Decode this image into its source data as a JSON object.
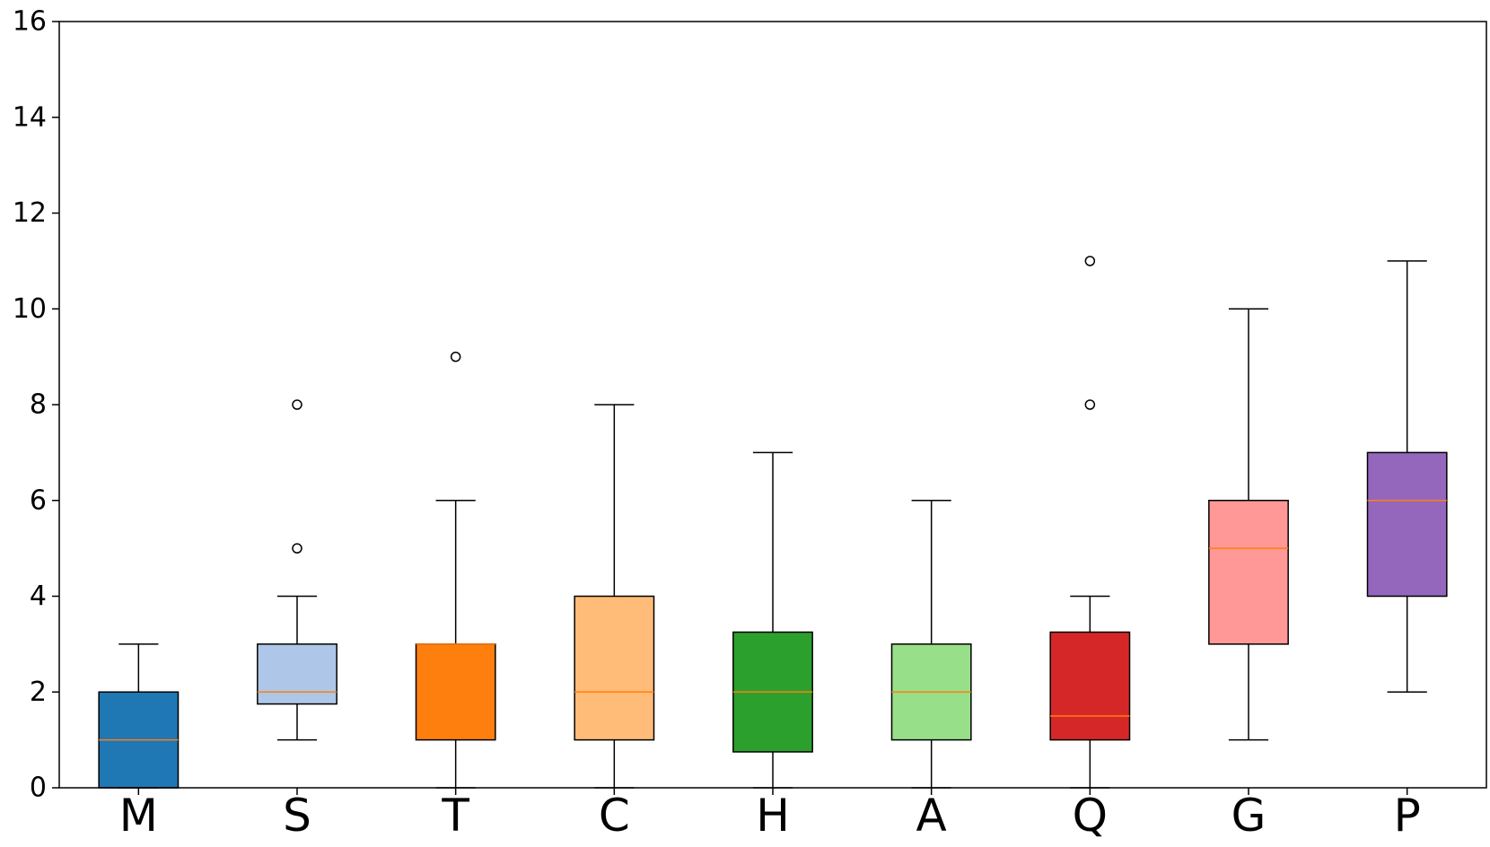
{
  "chart_data": {
    "type": "boxplot",
    "title": "",
    "xlabel": "",
    "ylabel": "",
    "ylim": [
      0,
      16
    ],
    "yticks": [
      0,
      2,
      4,
      6,
      8,
      10,
      12,
      14,
      16
    ],
    "ytick_labels": [
      "0",
      "2",
      "4",
      "6",
      "8",
      "10",
      "12",
      "14",
      "16"
    ],
    "grid": false,
    "median_color": "#ff7f0e",
    "categories": [
      "M",
      "S",
      "T",
      "C",
      "H",
      "A",
      "Q",
      "G",
      "P"
    ],
    "boxes": [
      {
        "label": "M",
        "color": "#1f77b4",
        "whisker_low": 0,
        "q1": 0,
        "median": 1,
        "q3": 2,
        "whisker_high": 3,
        "outliers": []
      },
      {
        "label": "S",
        "color": "#aec7e8",
        "whisker_low": 1,
        "q1": 1.75,
        "median": 2,
        "q3": 3,
        "whisker_high": 4,
        "outliers": [
          5,
          8
        ]
      },
      {
        "label": "T",
        "color": "#ff7f0e",
        "whisker_low": 0,
        "q1": 1,
        "median": 3,
        "q3": 3,
        "whisker_high": 6,
        "outliers": [
          9
        ]
      },
      {
        "label": "C",
        "color": "#ffbb78",
        "whisker_low": 0,
        "q1": 1,
        "median": 2,
        "q3": 4,
        "whisker_high": 8,
        "outliers": []
      },
      {
        "label": "H",
        "color": "#2ca02c",
        "whisker_low": 0,
        "q1": 0.75,
        "median": 2,
        "q3": 3.25,
        "whisker_high": 7,
        "outliers": []
      },
      {
        "label": "A",
        "color": "#98df8a",
        "whisker_low": 0,
        "q1": 1,
        "median": 2,
        "q3": 3,
        "whisker_high": 6,
        "outliers": []
      },
      {
        "label": "Q",
        "color": "#d62728",
        "whisker_low": 0,
        "q1": 1,
        "median": 1.5,
        "q3": 3.25,
        "whisker_high": 4,
        "outliers": [
          8,
          11
        ]
      },
      {
        "label": "G",
        "color": "#ff9896",
        "whisker_low": 1,
        "q1": 3,
        "median": 5,
        "q3": 6,
        "whisker_high": 10,
        "outliers": []
      },
      {
        "label": "P",
        "color": "#9467bd",
        "whisker_low": 2,
        "q1": 4,
        "median": 6,
        "q3": 7,
        "whisker_high": 11,
        "outliers": []
      }
    ]
  }
}
